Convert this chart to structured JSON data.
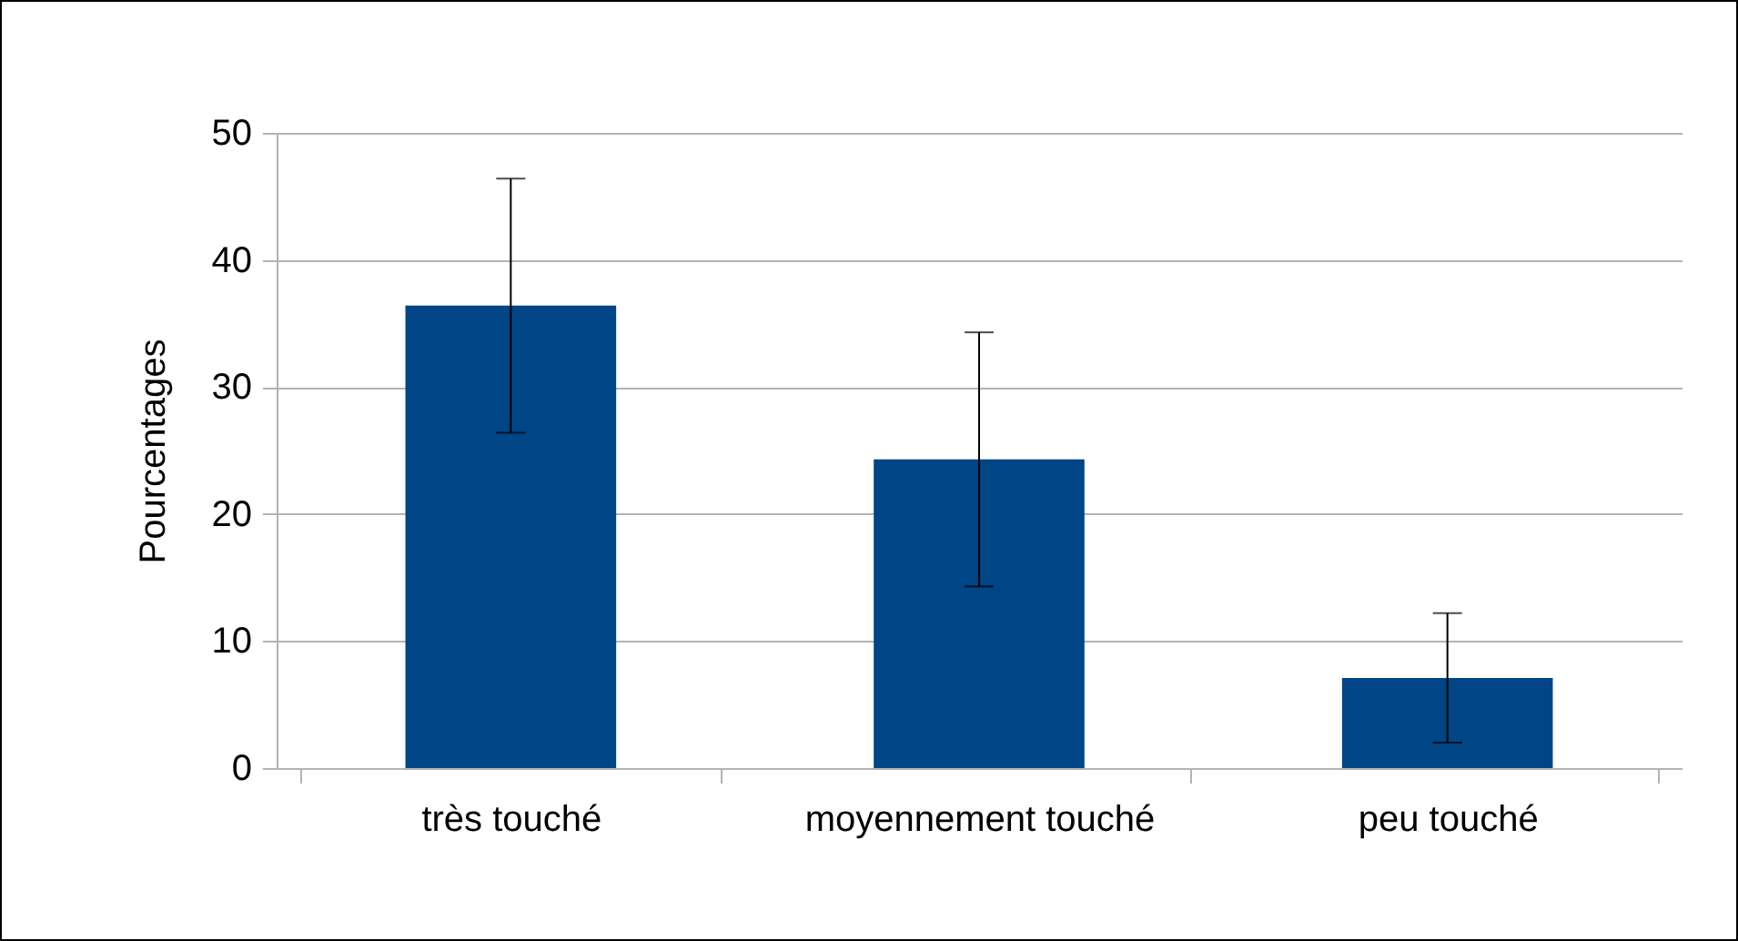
{
  "chart_data": {
    "type": "bar",
    "ylabel": "Pourcentages",
    "categories": [
      "très touché",
      "moyennement touché",
      "peu touché"
    ],
    "values": [
      36.4,
      24.3,
      7.1
    ],
    "errors": [
      10,
      10,
      5.1
    ],
    "color": "#004586",
    "ylim": [
      0,
      50
    ],
    "yticks": [
      0,
      10,
      20,
      30,
      40,
      50
    ],
    "grid": "y"
  }
}
